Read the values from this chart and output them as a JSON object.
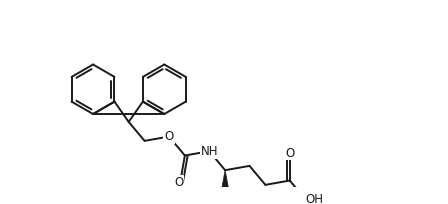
{
  "bg_color": "#ffffff",
  "line_color": "#1a1a1a",
  "lw": 1.4,
  "figsize": [
    4.48,
    2.04
  ],
  "dpi": 100,
  "xlim": [
    0,
    448
  ],
  "ylim": [
    0,
    204
  ]
}
